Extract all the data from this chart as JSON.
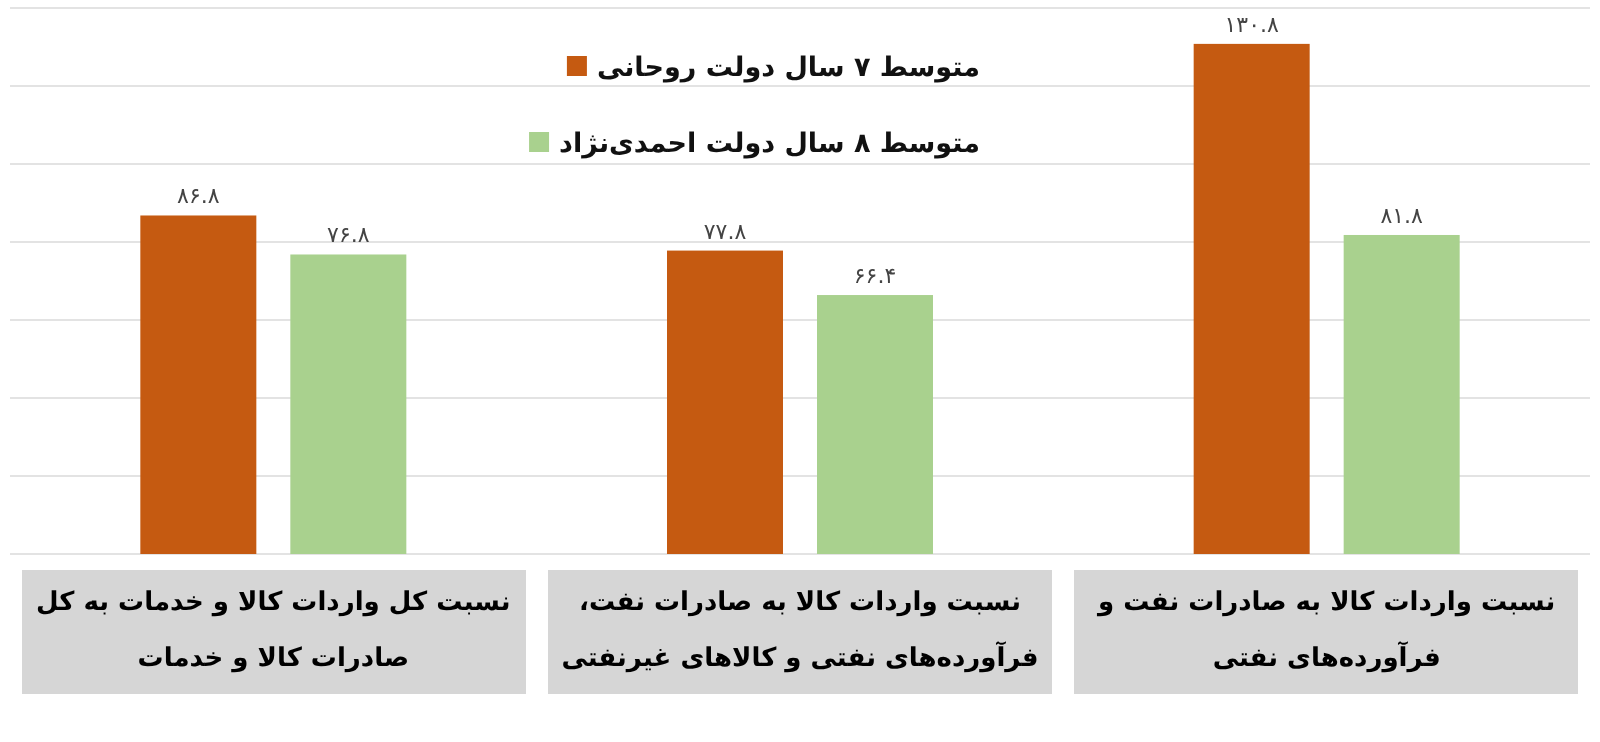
{
  "chart_data": {
    "type": "bar",
    "categories": [
      "نسبت کل واردات کالا و خدمات به کل صادرات کالا و خدمات",
      "نسبت واردات کالا به صادرات نفت، فرآورده‌های نفتی و کالاهای غیرنفتی",
      "نسبت واردات کالا به صادرات نفت و فرآورده‌های نفتی"
    ],
    "series": [
      {
        "name": "متوسط ۷ سال دولت روحانی",
        "color": "#c55a11",
        "values": [
          86.8,
          77.8,
          130.8
        ],
        "value_labels": [
          "۸۶.۸",
          "۷۷.۸",
          "۱۳۰.۸"
        ]
      },
      {
        "name": "متوسط ۸ سال دولت احمدی‌نژاد",
        "color": "#a9d18e",
        "values": [
          76.8,
          66.4,
          81.8
        ],
        "value_labels": [
          "۷۶.۸",
          "۶۶.۴",
          "۸۱.۸"
        ]
      }
    ],
    "ylim": [
      0,
      140
    ],
    "yticks": [
      {
        "value": 0,
        "label": null
      },
      {
        "value": 20,
        "label": null
      },
      {
        "value": 40,
        "label": null
      },
      {
        "value": 60,
        "label": null
      },
      {
        "value": 80,
        "label": null
      },
      {
        "value": 100,
        "label": null
      },
      {
        "value": 120,
        "label": null
      },
      {
        "value": 140,
        "label": null
      }
    ],
    "grid": "y",
    "legend": "top",
    "tick_labels": "x"
  }
}
